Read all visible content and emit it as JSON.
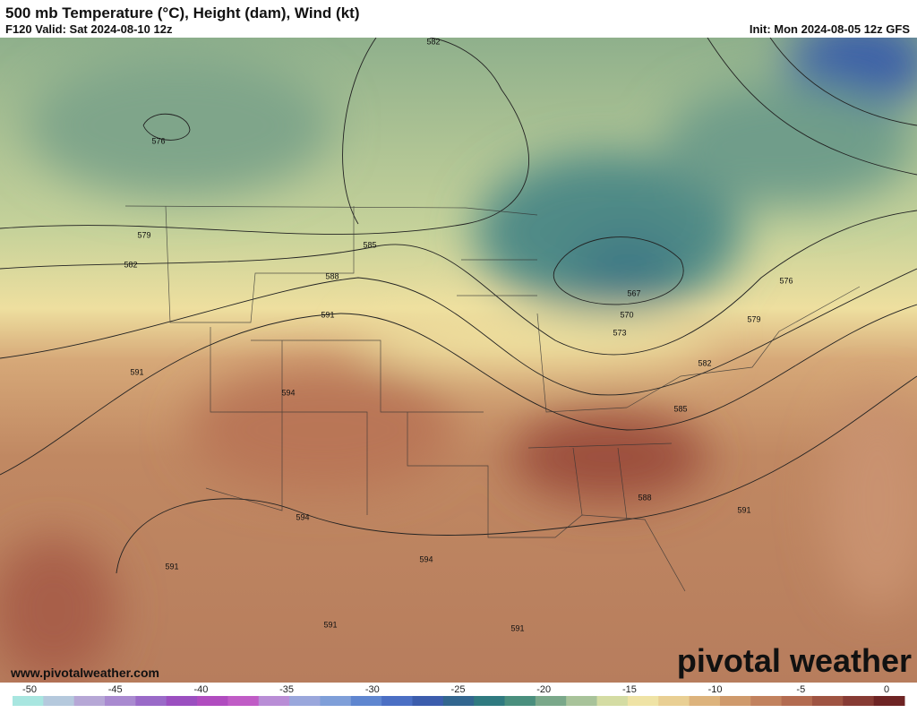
{
  "header": {
    "title": "500 mb Temperature (°C), Height (dam), Wind (kt)",
    "valid": "F120 Valid: Sat 2024-08-10 12z",
    "init": "Init: Mon 2024-08-05 12z GFS"
  },
  "map": {
    "contour_labels": [
      582,
      576,
      579,
      582,
      585,
      588,
      591,
      591,
      594,
      594,
      591,
      591,
      594,
      591,
      591,
      588,
      585,
      582,
      579,
      576,
      567,
      570,
      573
    ],
    "website": "www.pivotalweather.com",
    "watermark": "pivotal weather"
  },
  "colorbar": {
    "ticks": [
      -50,
      -45,
      -40,
      -35,
      -30,
      -25,
      -20,
      -15,
      -10,
      -5,
      0
    ]
  }
}
